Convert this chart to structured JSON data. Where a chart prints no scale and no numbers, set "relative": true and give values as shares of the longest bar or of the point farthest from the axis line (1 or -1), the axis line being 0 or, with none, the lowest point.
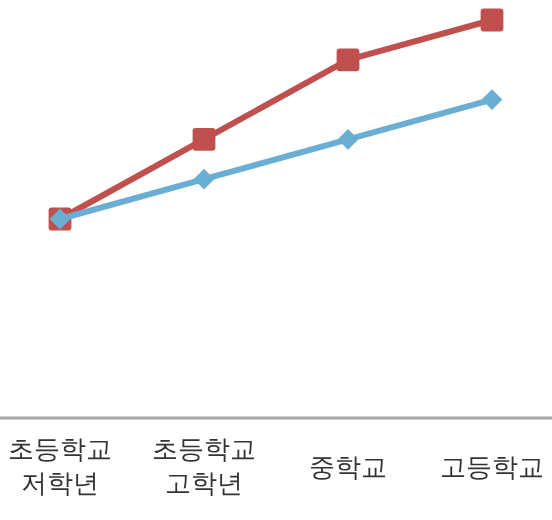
{
  "chart_data": {
    "type": "line",
    "relative": true,
    "categories": [
      "초등학교 저학년",
      "초등학교 고학년",
      "중학교",
      "고등학교"
    ],
    "series": [
      {
        "color": "#c0504d",
        "marker": "square",
        "values": [
          0.5,
          0.7,
          0.9,
          1
        ]
      },
      {
        "color": "#6aaed3",
        "marker": "diamond",
        "values": [
          0.5,
          0.6,
          0.7,
          0.8
        ]
      }
    ],
    "line_style": "solid"
  }
}
